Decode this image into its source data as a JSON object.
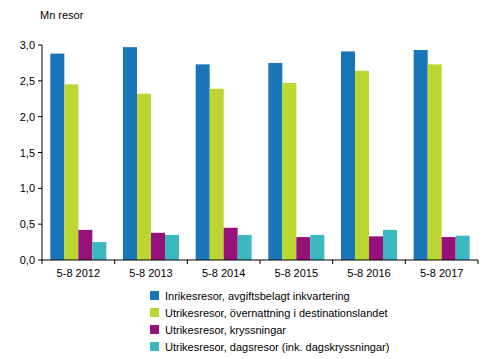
{
  "chart_data": {
    "type": "bar",
    "y_label": "Mn resor",
    "categories": [
      "5-8 2012",
      "5-8 2013",
      "5-8 2014",
      "5-8 2015",
      "5-8 2016",
      "5-8 2017"
    ],
    "series": [
      {
        "name": "Inrikesresor, avgiftsbelagt inkvartering",
        "color": "#1a75b8",
        "values": [
          2.88,
          2.97,
          2.73,
          2.75,
          2.91,
          2.93
        ]
      },
      {
        "name": "Utrikesresor, övernattning i destinationslandet",
        "color": "#bcd631",
        "values": [
          2.45,
          2.32,
          2.39,
          2.47,
          2.64,
          2.73
        ]
      },
      {
        "name": "Utrikesresor, kryssningar",
        "color": "#96127a",
        "values": [
          0.42,
          0.38,
          0.45,
          0.32,
          0.33,
          0.32
        ]
      },
      {
        "name": "Utrikesresor, dagsresor (ink. dagskryssningar)",
        "color": "#3cb8c0",
        "values": [
          0.25,
          0.35,
          0.35,
          0.35,
          0.42,
          0.34
        ]
      }
    ],
    "ylim": [
      0,
      3
    ],
    "yticks": [
      {
        "value": 0,
        "label": "0,0"
      },
      {
        "value": 0.5,
        "label": "0,5"
      },
      {
        "value": 1,
        "label": "1,0"
      },
      {
        "value": 1.5,
        "label": "1,5"
      },
      {
        "value": 2,
        "label": "2,0"
      },
      {
        "value": 2.5,
        "label": "2,5"
      },
      {
        "value": 3,
        "label": "3,0"
      }
    ],
    "grid": false,
    "legend": "bottom"
  }
}
